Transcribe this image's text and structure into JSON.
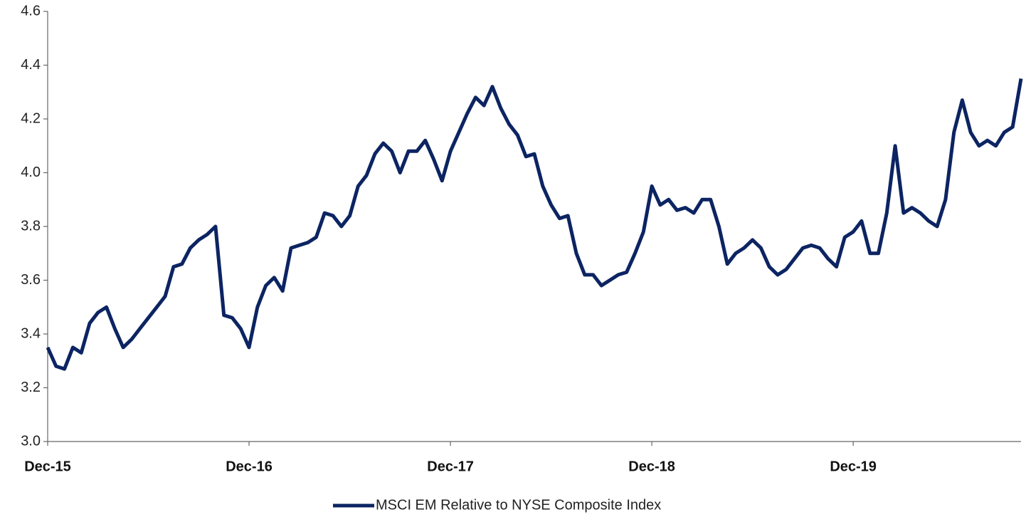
{
  "chart_data": {
    "type": "line",
    "categories": [
      "Dec-15",
      null,
      null,
      null,
      null,
      null,
      null,
      null,
      null,
      null,
      null,
      null,
      null,
      null,
      null,
      null,
      null,
      null,
      null,
      null,
      null,
      null,
      null,
      null,
      "Dec-16",
      null,
      null,
      null,
      null,
      null,
      null,
      null,
      null,
      null,
      null,
      null,
      null,
      null,
      null,
      null,
      null,
      null,
      null,
      null,
      null,
      null,
      null,
      null,
      "Dec-17",
      null,
      null,
      null,
      null,
      null,
      null,
      null,
      null,
      null,
      null,
      null,
      null,
      null,
      null,
      null,
      null,
      null,
      null,
      null,
      null,
      null,
      null,
      null,
      "Dec-18",
      null,
      null,
      null,
      null,
      null,
      null,
      null,
      null,
      null,
      null,
      null,
      null,
      null,
      null,
      null,
      null,
      null,
      null,
      null,
      null,
      null,
      null,
      null,
      "Dec-19",
      null,
      null,
      null,
      null,
      null,
      null,
      null,
      null,
      null,
      null,
      null,
      null,
      null,
      null,
      null,
      null,
      null,
      null,
      null,
      null
    ],
    "series": [
      {
        "name": "MSCI EM Relative to NYSE Composite Index",
        "color": "#0c2462",
        "values": [
          3.35,
          3.28,
          3.27,
          3.35,
          3.33,
          3.44,
          3.48,
          3.5,
          3.42,
          3.35,
          3.38,
          3.42,
          3.46,
          3.5,
          3.54,
          3.65,
          3.66,
          3.72,
          3.75,
          3.77,
          3.8,
          3.47,
          3.46,
          3.42,
          3.35,
          3.5,
          3.58,
          3.61,
          3.56,
          3.72,
          3.73,
          3.74,
          3.76,
          3.85,
          3.84,
          3.8,
          3.84,
          3.95,
          3.99,
          4.07,
          4.11,
          4.08,
          4.0,
          4.08,
          4.08,
          4.12,
          4.05,
          3.97,
          4.08,
          4.15,
          4.22,
          4.28,
          4.25,
          4.32,
          4.24,
          4.18,
          4.14,
          4.06,
          4.07,
          3.95,
          3.88,
          3.83,
          3.84,
          3.7,
          3.62,
          3.62,
          3.58,
          3.6,
          3.62,
          3.63,
          3.7,
          3.78,
          3.95,
          3.88,
          3.9,
          3.86,
          3.87,
          3.85,
          3.9,
          3.9,
          3.8,
          3.66,
          3.7,
          3.72,
          3.75,
          3.72,
          3.65,
          3.62,
          3.64,
          3.68,
          3.72,
          3.73,
          3.72,
          3.68,
          3.65,
          3.76,
          3.78,
          3.82,
          3.7,
          3.7,
          3.85,
          4.1,
          3.85,
          3.87,
          3.85,
          3.82,
          3.8,
          3.9,
          4.15,
          4.27,
          4.15,
          4.1,
          4.12,
          4.1,
          4.15,
          4.17,
          4.35
        ]
      }
    ],
    "ylim": [
      3.0,
      4.6
    ],
    "yticks": [
      {
        "value": 3.0,
        "label": "3.0"
      },
      3.2,
      3.4,
      3.6,
      3.8,
      {
        "value": 4.0,
        "label": "4.0"
      },
      4.2,
      4.4,
      4.6
    ],
    "grid": false,
    "legend": "bottom"
  }
}
